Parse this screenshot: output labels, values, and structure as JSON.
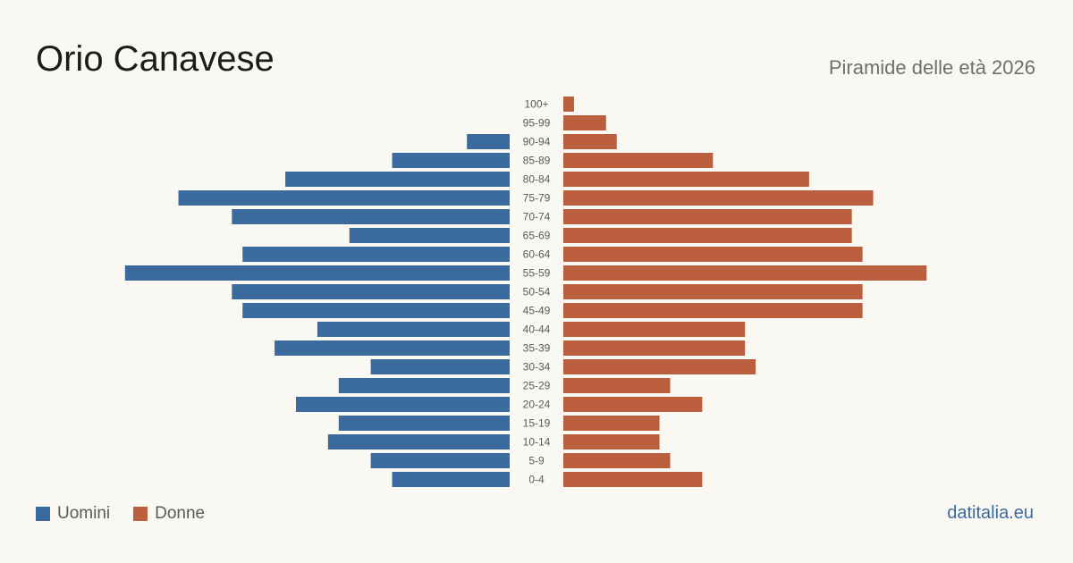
{
  "header": {
    "title": "Orio Canavese",
    "subtitle": "Piramide delle età 2026"
  },
  "legend": {
    "male_label": "Uomini",
    "female_label": "Donne"
  },
  "brand": "datitalia.eu",
  "colors": {
    "male": "#3b6b9e",
    "female": "#bb5e3d",
    "background": "#faf8f3"
  },
  "chart_data": {
    "type": "bar",
    "orientation": "horizontal-pyramid",
    "categories": [
      "100+",
      "95-99",
      "90-94",
      "85-89",
      "80-84",
      "75-79",
      "70-74",
      "65-69",
      "60-64",
      "55-59",
      "50-54",
      "45-49",
      "40-44",
      "35-39",
      "30-34",
      "25-29",
      "20-24",
      "15-19",
      "10-14",
      "5-9",
      "0-4"
    ],
    "series": [
      {
        "name": "Uomini",
        "values": [
          0,
          0,
          4,
          11,
          21,
          31,
          26,
          15,
          25,
          36,
          26,
          25,
          18,
          22,
          13,
          16,
          20,
          16,
          17,
          13,
          11
        ]
      },
      {
        "name": "Donne",
        "values": [
          1,
          4,
          5,
          14,
          23,
          29,
          27,
          27,
          28,
          34,
          28,
          28,
          17,
          17,
          18,
          10,
          13,
          9,
          9,
          10,
          13
        ]
      }
    ],
    "legend": "bottom-left",
    "grid": false
  }
}
